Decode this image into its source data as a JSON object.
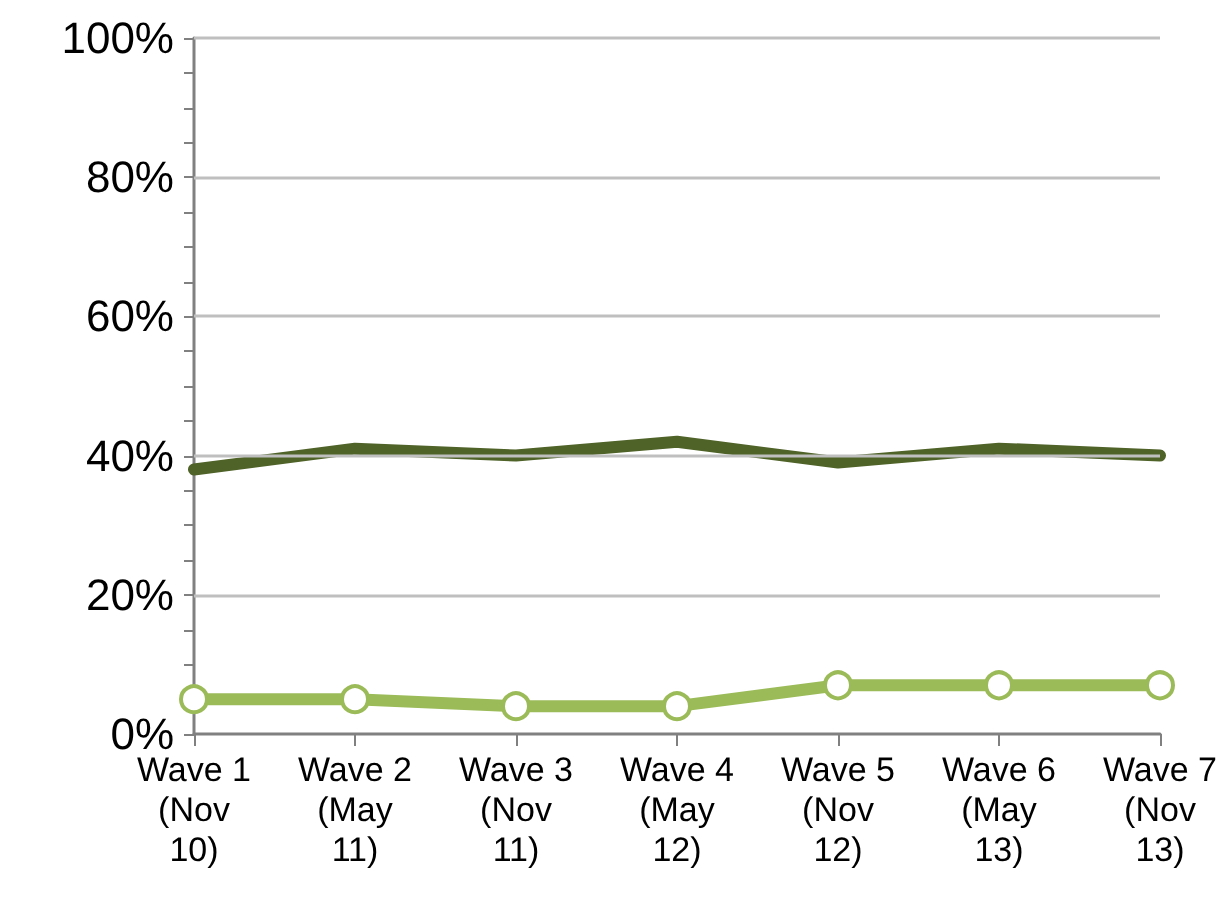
{
  "chart_data": {
    "type": "line",
    "categories": [
      "Wave 1\n(Nov\n10)",
      "Wave 2\n(May\n11)",
      "Wave 3\n(Nov\n11)",
      "Wave 4\n(May\n12)",
      "Wave 5\n(Nov\n12)",
      "Wave 6\n(May\n13)",
      "Wave 7\n(Nov\n13)"
    ],
    "series": [
      {
        "color": "#4f6228",
        "values": [
          38,
          41,
          40,
          42,
          39,
          41,
          40
        ],
        "marker": "none"
      },
      {
        "color": "#9bbb59",
        "values": [
          5,
          5,
          4,
          4,
          7,
          7,
          7
        ],
        "marker": "circle"
      }
    ],
    "ylim": [
      0,
      100
    ],
    "yticks": [
      {
        "value": 0,
        "label": "0%"
      },
      {
        "value": 5,
        "label": null
      },
      {
        "value": 10,
        "label": null
      },
      {
        "value": 15,
        "label": null
      },
      {
        "value": 20,
        "label": "20%"
      },
      {
        "value": 25,
        "label": null
      },
      {
        "value": 30,
        "label": null
      },
      {
        "value": 35,
        "label": null
      },
      {
        "value": 40,
        "label": "40%"
      },
      {
        "value": 45,
        "label": null
      },
      {
        "value": 50,
        "label": null
      },
      {
        "value": 55,
        "label": null
      },
      {
        "value": 60,
        "label": "60%"
      },
      {
        "value": 65,
        "label": null
      },
      {
        "value": 70,
        "label": null
      },
      {
        "value": 75,
        "label": null
      },
      {
        "value": 80,
        "label": "80%"
      },
      {
        "value": 85,
        "label": null
      },
      {
        "value": 90,
        "label": null
      },
      {
        "value": 95,
        "label": null
      },
      {
        "value": 100,
        "label": "100%"
      }
    ],
    "grid": "y",
    "line_style": "solid"
  }
}
